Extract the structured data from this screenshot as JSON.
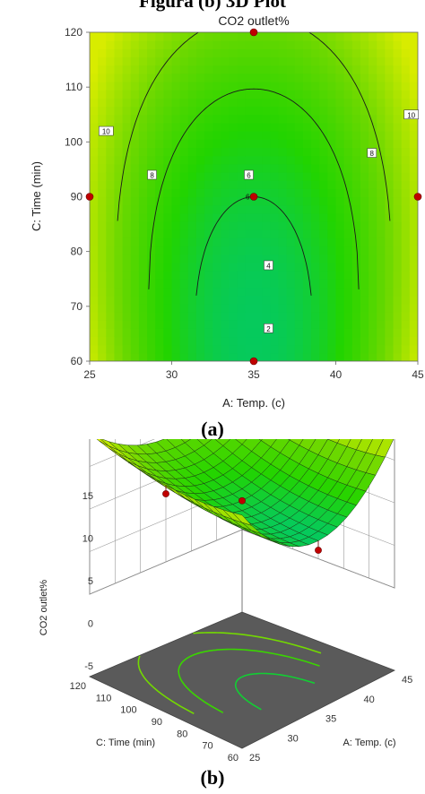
{
  "header": {
    "title": "Figura (b) 3D Plot"
  },
  "panel_labels": {
    "a": "(a)",
    "b": "(b)"
  },
  "chart_data": [
    {
      "type": "contour",
      "title": "CO2 outlet%",
      "xlabel": "A: Temp. (c)",
      "ylabel": "C: Time (min)",
      "xlim": [
        25,
        45
      ],
      "ylim": [
        60,
        120
      ],
      "x_ticks": [
        25,
        30,
        35,
        40,
        45
      ],
      "y_ticks": [
        60,
        70,
        80,
        90,
        100,
        110,
        120
      ],
      "contour_levels": [
        2,
        4,
        6,
        8,
        10
      ],
      "contour_labels": [
        {
          "text": "10",
          "x": 26,
          "y": 102
        },
        {
          "text": "8",
          "x": 28.8,
          "y": 94
        },
        {
          "text": "6",
          "x": 34.7,
          "y": 94
        },
        {
          "text": "4",
          "x": 35.9,
          "y": 77.5
        },
        {
          "text": "2",
          "x": 35.9,
          "y": 66
        },
        {
          "text": "8",
          "x": 42.2,
          "y": 98
        },
        {
          "text": "10",
          "x": 44.6,
          "y": 105
        }
      ],
      "center_point_label": "6",
      "design_points": [
        {
          "x": 35,
          "y": 120
        },
        {
          "x": 25,
          "y": 90
        },
        {
          "x": 35,
          "y": 90
        },
        {
          "x": 45,
          "y": 90
        },
        {
          "x": 35,
          "y": 60
        }
      ],
      "colormap": [
        "#0a2fd6",
        "#00b7e6",
        "#00c86e",
        "#22d400",
        "#6bd800",
        "#d8ec00"
      ]
    },
    {
      "type": "surface3d",
      "zlabel": "CO2 outlet%",
      "xlabel": "A: Temp. (c)",
      "ylabel": "C: Time (min)",
      "z_ticks": [
        -5,
        0,
        5,
        10,
        15
      ],
      "x_ticks": [
        25,
        30,
        35,
        40,
        45
      ],
      "y_ticks": [
        60,
        70,
        80,
        90,
        100,
        110,
        120
      ],
      "design_points": [
        {
          "temp": 25,
          "time": 90,
          "co2": 11
        },
        {
          "temp": 35,
          "time": 120,
          "co2": 13
        },
        {
          "temp": 35,
          "time": 60,
          "co2": 4
        },
        {
          "temp": 35,
          "time": 90,
          "co2": 6
        }
      ]
    }
  ]
}
